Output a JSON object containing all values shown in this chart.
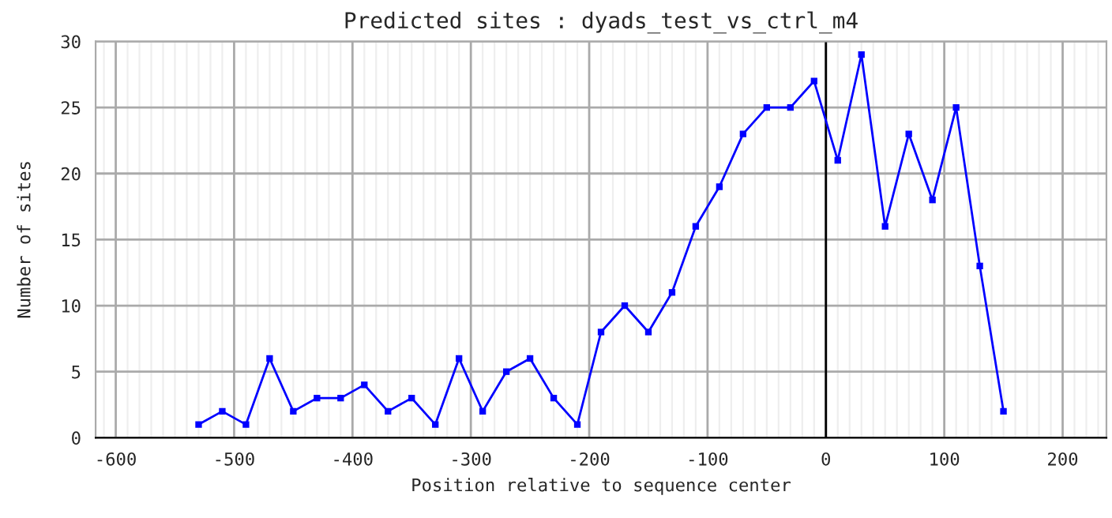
{
  "chart_data": {
    "type": "line",
    "title": "Predicted sites : dyads_test_vs_ctrl_m4",
    "xlabel": "Position relative to sequence center",
    "ylabel": "Number of sites",
    "x": [
      -530,
      -510,
      -490,
      -470,
      -450,
      -430,
      -410,
      -390,
      -370,
      -350,
      -330,
      -310,
      -290,
      -270,
      -250,
      -230,
      -210,
      -190,
      -170,
      -150,
      -130,
      -110,
      -90,
      -70,
      -50,
      -30,
      -10,
      10,
      30,
      50,
      70,
      90,
      110,
      130,
      150
    ],
    "series": [
      {
        "color": "#0000ff",
        "values": [
          1,
          2,
          1,
          6,
          2,
          3,
          3,
          4,
          2,
          3,
          1,
          6,
          2,
          5,
          6,
          3,
          1,
          8,
          10,
          8,
          11,
          16,
          19,
          23,
          25,
          25,
          27,
          21,
          29,
          16,
          23,
          18,
          25,
          13,
          2
        ]
      }
    ],
    "xlim": [
      -617,
      237
    ],
    "xticks": [
      -600,
      -500,
      -400,
      -300,
      -200,
      -100,
      0,
      100,
      200
    ],
    "ylim": [
      0,
      30
    ],
    "yticks": [
      0,
      5,
      10,
      15,
      20,
      25,
      30
    ],
    "ref_lines": [
      {
        "axis": "x",
        "value": 0,
        "color": "#000000"
      }
    ],
    "grid": true,
    "marker": "square",
    "line_style": "solid"
  }
}
